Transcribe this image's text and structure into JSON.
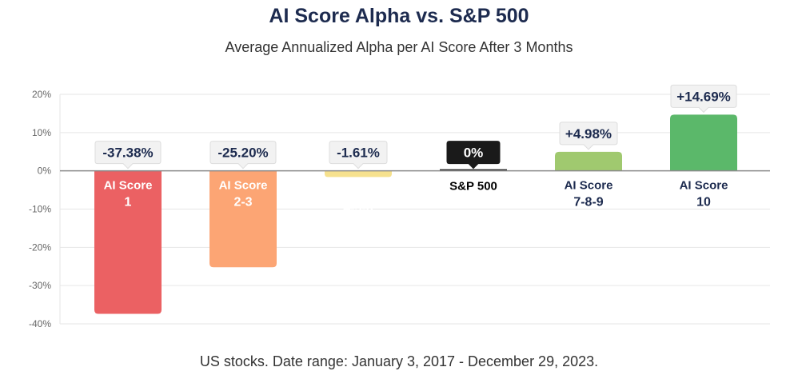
{
  "chart_data": {
    "type": "bar",
    "title": "AI Score Alpha vs. S&P 500",
    "subtitle": "Average Annualized Alpha per AI Score After 3 Months",
    "footnote": "US stocks. Date range: January 3, 2017 - December 29, 2023.",
    "categories": [
      {
        "line1": "AI Score",
        "line2": "1"
      },
      {
        "line1": "AI Score",
        "line2": "2-3"
      },
      {
        "line1": "AI Score",
        "line2": "4-5-6"
      },
      {
        "line1": "S&P 500",
        "line2": ""
      },
      {
        "line1": "AI Score",
        "line2": "7-8-9"
      },
      {
        "line1": "AI Score",
        "line2": "10"
      }
    ],
    "values": [
      -37.38,
      -25.2,
      -1.61,
      0,
      4.98,
      14.69
    ],
    "value_labels": [
      "-37.38%",
      "-25.20%",
      "-1.61%",
      "0%",
      "+4.98%",
      "+14.69%"
    ],
    "colors": [
      "#eb6163",
      "#fca574",
      "#f6e18e",
      "#1a1a1a",
      "#a0c96f",
      "#5bb86a"
    ],
    "ylim": [
      -40,
      20
    ],
    "yticks": [
      20,
      10,
      0,
      -10,
      -20,
      -30,
      -40
    ],
    "ytick_labels": [
      "20%",
      "10%",
      "0%",
      "-10%",
      "-20%",
      "-30%",
      "-40%"
    ],
    "grid": true,
    "text_color": "#1d2b4f"
  }
}
